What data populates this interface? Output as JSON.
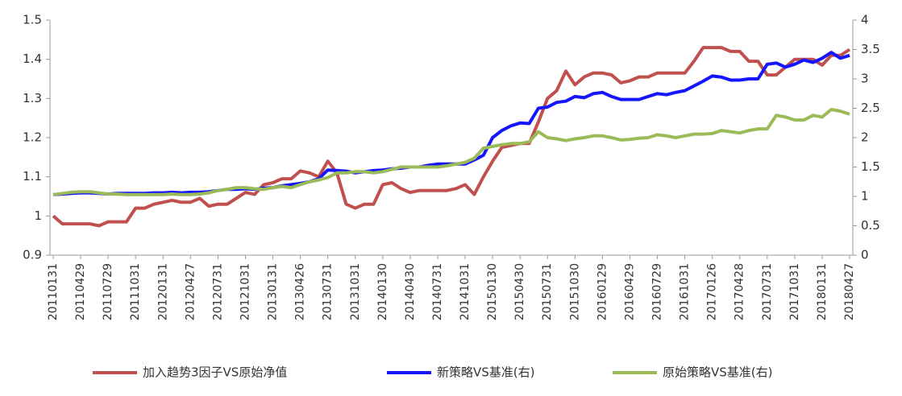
{
  "chart_data": {
    "type": "line",
    "categories": [
      "20110131",
      null,
      null,
      "20110429",
      null,
      null,
      "20110729",
      null,
      null,
      "20111031",
      null,
      null,
      "20120131",
      null,
      null,
      "20120427",
      null,
      null,
      "20120731",
      null,
      null,
      "20121031",
      null,
      null,
      "20130131",
      null,
      null,
      "20130426",
      null,
      null,
      "20130731",
      null,
      null,
      "20131031",
      null,
      null,
      "20140130",
      null,
      null,
      "20140430",
      null,
      null,
      "20140731",
      null,
      null,
      "20141031",
      null,
      null,
      "20150130",
      null,
      null,
      "20150430",
      null,
      null,
      "20150731",
      null,
      null,
      "20151030",
      null,
      null,
      "20160129",
      null,
      null,
      "20160429",
      null,
      null,
      "20160729",
      null,
      null,
      "20161031",
      null,
      null,
      "20170126",
      null,
      null,
      "20170428",
      null,
      null,
      "20170731",
      null,
      null,
      "20171031",
      null,
      null,
      "20180131",
      null,
      null,
      "20180427"
    ],
    "series": [
      {
        "name": "加入趋势3因子VS原始净值",
        "color": "#c0504d",
        "values": [
          1.0,
          0.98,
          0.98,
          0.98,
          0.98,
          0.975,
          0.985,
          0.985,
          0.985,
          1.02,
          1.02,
          1.03,
          1.035,
          1.04,
          1.035,
          1.035,
          1.045,
          1.025,
          1.03,
          1.03,
          1.045,
          1.06,
          1.055,
          1.08,
          1.085,
          1.095,
          1.095,
          1.115,
          1.11,
          1.1,
          1.14,
          1.11,
          1.03,
          1.02,
          1.03,
          1.03,
          1.08,
          1.085,
          1.07,
          1.06,
          1.065,
          1.065,
          1.065,
          1.065,
          1.07,
          1.08,
          1.055,
          1.1,
          1.14,
          1.175,
          1.18,
          1.185,
          1.185,
          1.24,
          1.3,
          1.32,
          1.37,
          1.335,
          1.355,
          1.365,
          1.365,
          1.36,
          1.34,
          1.345,
          1.355,
          1.355,
          1.365,
          1.365,
          1.365,
          1.365,
          1.395,
          1.43,
          1.43,
          1.43,
          1.42,
          1.42,
          1.395,
          1.395,
          1.36,
          1.36,
          1.38,
          1.4,
          1.4,
          1.4,
          1.385,
          1.41,
          1.41,
          1.425
        ]
      },
      {
        "name": "新策略VS基准(右)",
        "color": "#1515ff",
        "axis": "y2",
        "values": [
          1.03,
          1.04,
          1.05,
          1.06,
          1.06,
          1.05,
          1.04,
          1.05,
          1.05,
          1.05,
          1.05,
          1.06,
          1.06,
          1.07,
          1.06,
          1.07,
          1.07,
          1.08,
          1.1,
          1.12,
          1.12,
          1.13,
          1.12,
          1.14,
          1.15,
          1.18,
          1.2,
          1.22,
          1.25,
          1.3,
          1.45,
          1.44,
          1.43,
          1.4,
          1.42,
          1.44,
          1.45,
          1.47,
          1.48,
          1.5,
          1.5,
          1.53,
          1.55,
          1.55,
          1.55,
          1.55,
          1.62,
          1.7,
          2.0,
          2.12,
          2.2,
          2.25,
          2.24,
          2.5,
          2.52,
          2.6,
          2.62,
          2.7,
          2.68,
          2.75,
          2.77,
          2.7,
          2.65,
          2.65,
          2.65,
          2.7,
          2.75,
          2.73,
          2.77,
          2.8,
          2.88,
          2.96,
          3.05,
          3.03,
          2.98,
          2.98,
          3.0,
          3.0,
          3.25,
          3.27,
          3.2,
          3.25,
          3.32,
          3.28,
          3.35,
          3.45,
          3.35,
          3.4
        ]
      },
      {
        "name": "原始策略VS基准(右)",
        "color": "#9bbb59",
        "axis": "y2",
        "values": [
          1.03,
          1.05,
          1.07,
          1.08,
          1.08,
          1.06,
          1.04,
          1.04,
          1.03,
          1.03,
          1.03,
          1.03,
          1.03,
          1.04,
          1.03,
          1.03,
          1.04,
          1.06,
          1.1,
          1.12,
          1.15,
          1.15,
          1.13,
          1.12,
          1.15,
          1.17,
          1.15,
          1.2,
          1.25,
          1.28,
          1.32,
          1.4,
          1.4,
          1.42,
          1.42,
          1.4,
          1.42,
          1.46,
          1.5,
          1.5,
          1.5,
          1.5,
          1.5,
          1.52,
          1.55,
          1.58,
          1.65,
          1.82,
          1.85,
          1.88,
          1.9,
          1.9,
          1.93,
          2.1,
          2.0,
          1.98,
          1.95,
          1.98,
          2.0,
          2.03,
          2.03,
          2.0,
          1.96,
          1.97,
          1.99,
          2.0,
          2.05,
          2.03,
          2.0,
          2.03,
          2.06,
          2.06,
          2.07,
          2.12,
          2.1,
          2.08,
          2.12,
          2.15,
          2.15,
          2.38,
          2.35,
          2.3,
          2.3,
          2.38,
          2.35,
          2.48,
          2.45,
          2.4
        ]
      }
    ],
    "ylim": [
      0.9,
      1.5
    ],
    "yticks": [
      0.9,
      1,
      1.1,
      1.2,
      1.3,
      1.4,
      1.5
    ],
    "y2lim": [
      0,
      4
    ],
    "y2ticks": [
      0,
      0.5,
      1,
      1.5,
      2,
      2.5,
      3,
      3.5,
      4
    ],
    "legend": "bottom"
  }
}
